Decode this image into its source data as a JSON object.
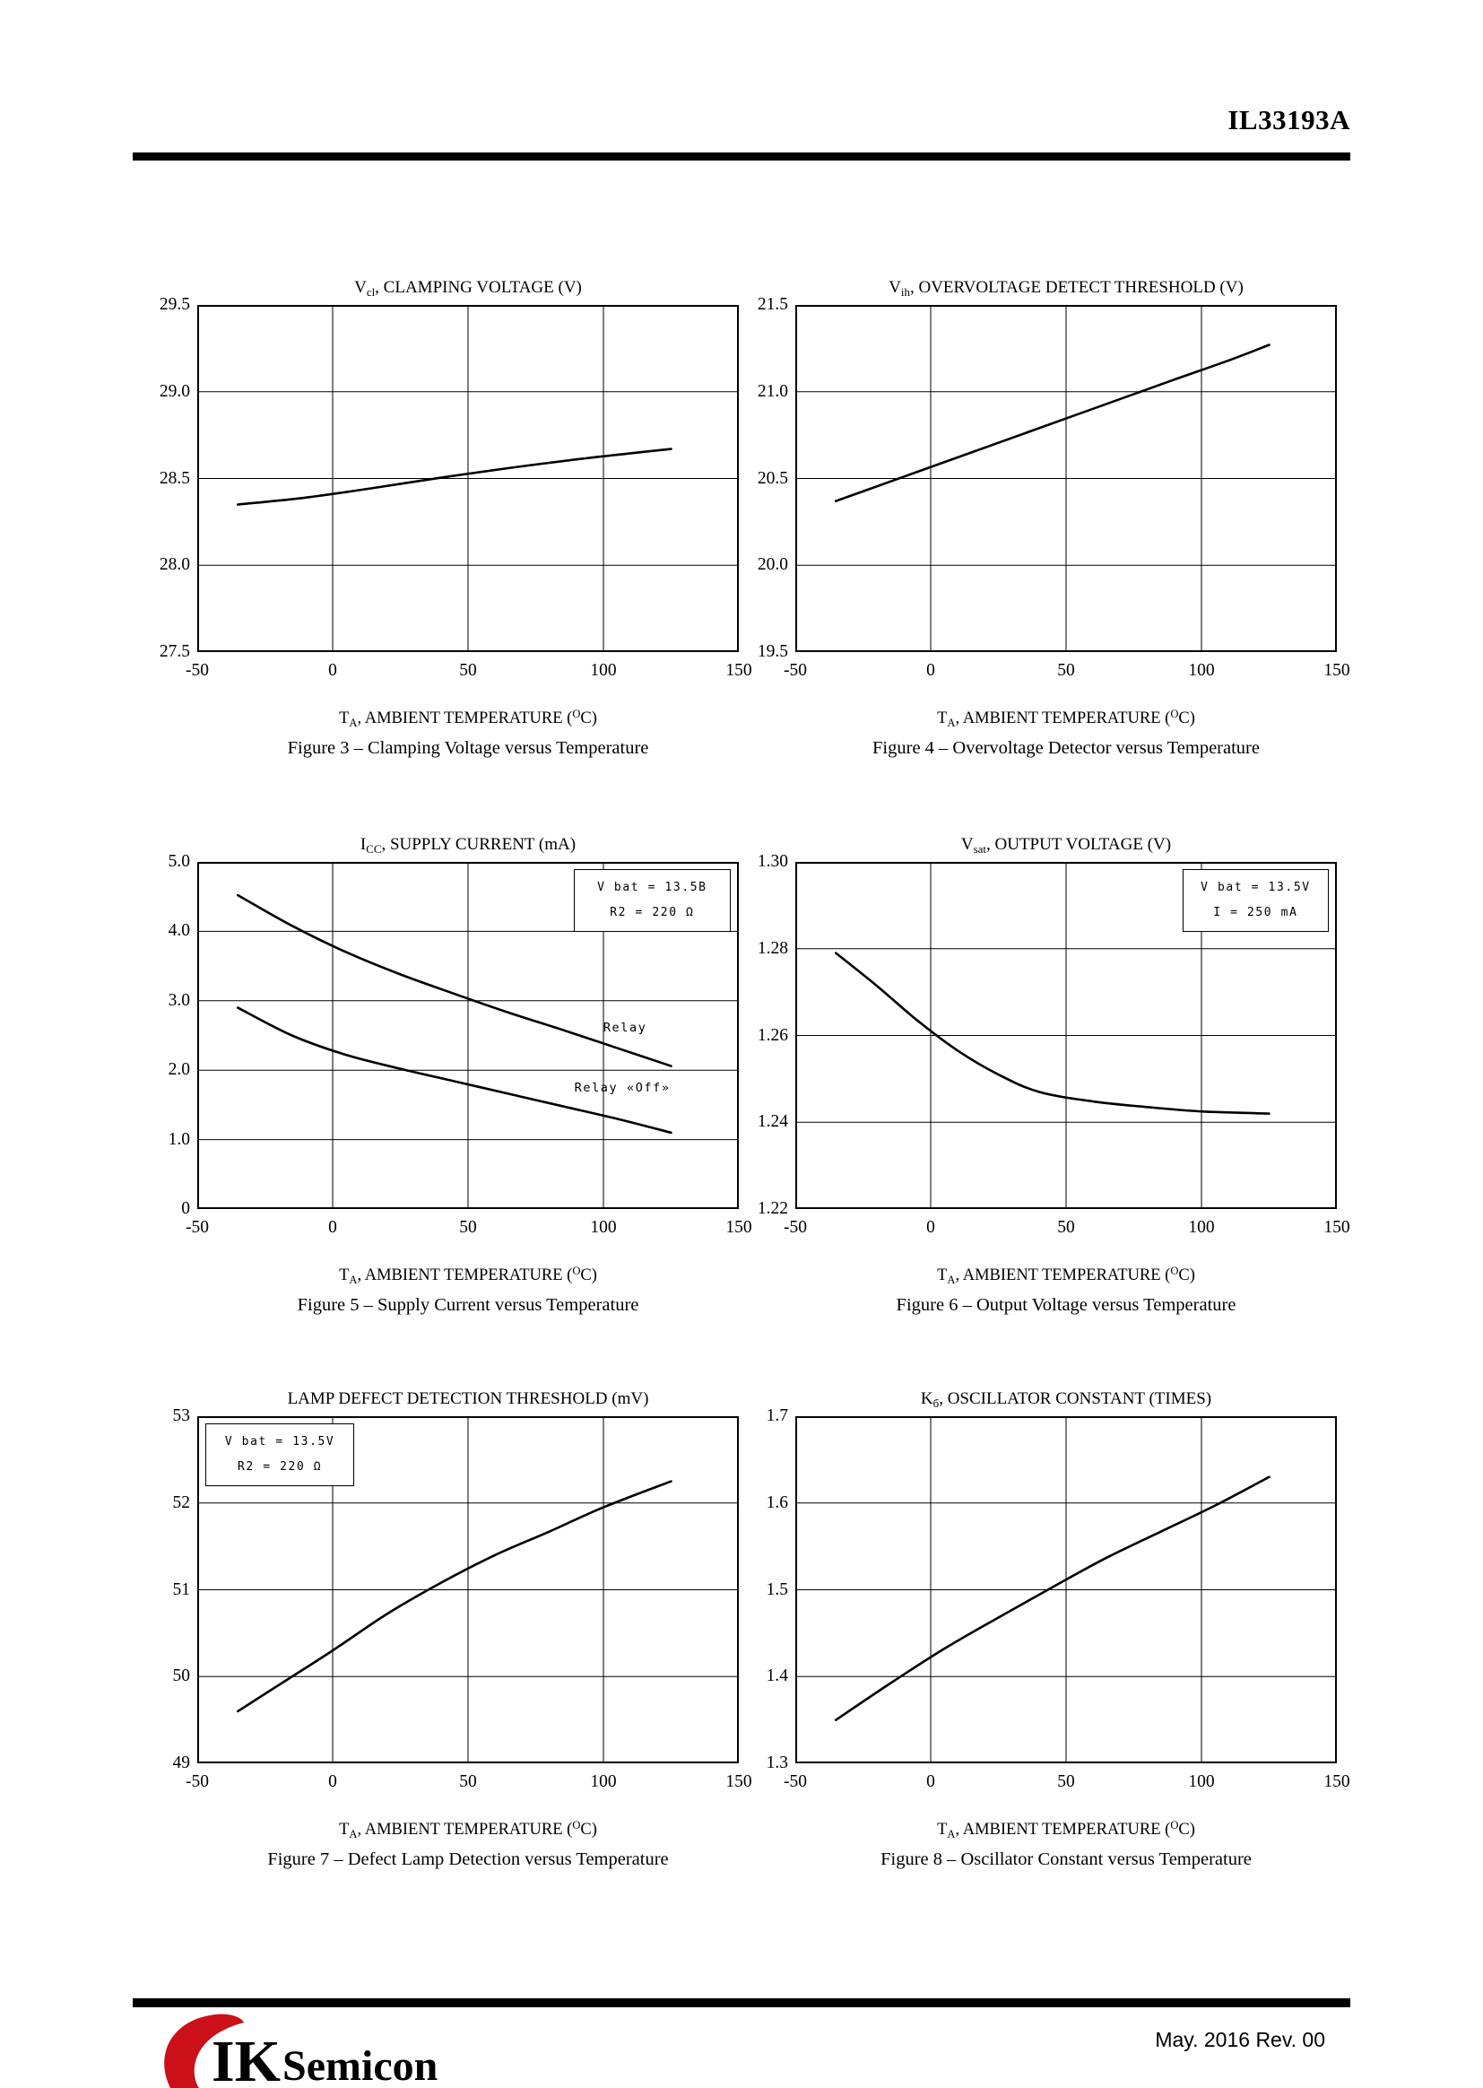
{
  "page": {
    "header": {
      "part_number": "IL33193A"
    },
    "footer": {
      "revision": "May. 2016 Rev. 00",
      "logo_text_ik": "IK",
      "logo_text_semicon": "Semicon",
      "logo_accent_color": "#cc1019"
    }
  },
  "x_axis_label_text": "TA, AMBIENT TEMPERATURE (°C)",
  "x_axis_label_parts": [
    {
      "s": "T"
    },
    {
      "t": "sub",
      "s": "A"
    },
    {
      "s": ", AMBIENT TEMPERATURE ("
    },
    {
      "t": "sup",
      "s": "O"
    },
    {
      "s": "C)"
    }
  ],
  "chart_data": [
    {
      "figure": "Figure 3",
      "type": "line",
      "title_text": "Vcl, CLAMPING VOLTAGE (V)",
      "title_parts": [
        {
          "s": "V"
        },
        {
          "t": "sub",
          "s": "cl"
        },
        {
          "s": ", CLAMPING VOLTAGE (V)"
        }
      ],
      "caption": "Figure 3 – Clamping Voltage versus Temperature",
      "xlabel": "TA, AMBIENT TEMPERATURE (°C)",
      "grid": true,
      "xlim": [
        -50,
        150
      ],
      "ylim": [
        27.5,
        29.5
      ],
      "xtick_values": [
        -50,
        0,
        50,
        100,
        150
      ],
      "xtick_labels": [
        "-50",
        "0",
        "50",
        "100",
        "150"
      ],
      "ytick_values": [
        27.5,
        28.0,
        28.5,
        29.0,
        29.5
      ],
      "ytick_labels": [
        "27.5",
        "28.0",
        "28.5",
        "29.0",
        "29.5"
      ],
      "series": [
        {
          "name": "clamping-voltage",
          "points": [
            [
              -35,
              28.35
            ],
            [
              -10,
              28.39
            ],
            [
              15,
              28.445
            ],
            [
              40,
              28.505
            ],
            [
              65,
              28.56
            ],
            [
              90,
              28.61
            ],
            [
              110,
              28.645
            ],
            [
              125,
              28.67
            ]
          ]
        }
      ]
    },
    {
      "figure": "Figure 4",
      "type": "line",
      "title_text": "Vih, OVERVOLTAGE DETECT THRESHOLD (V)",
      "title_parts": [
        {
          "s": "V"
        },
        {
          "t": "sub",
          "s": "ih"
        },
        {
          "s": ", OVERVOLTAGE DETECT THRESHOLD (V)"
        }
      ],
      "caption": "Figure 4 – Overvoltage Detector versus Temperature",
      "xlabel": "TA, AMBIENT TEMPERATURE (°C)",
      "grid": true,
      "xlim": [
        -50,
        150
      ],
      "ylim": [
        19.5,
        21.5
      ],
      "xtick_values": [
        -50,
        0,
        50,
        100,
        150
      ],
      "xtick_labels": [
        "-50",
        "0",
        "50",
        "100",
        "150"
      ],
      "ytick_values": [
        19.5,
        20.0,
        20.5,
        21.0,
        21.5
      ],
      "ytick_labels": [
        "19.5",
        "20.0",
        "20.5",
        "21.0",
        "21.5"
      ],
      "series": [
        {
          "name": "overvoltage-threshold",
          "points": [
            [
              -35,
              20.37
            ],
            [
              -10,
              20.51
            ],
            [
              15,
              20.65
            ],
            [
              40,
              20.79
            ],
            [
              65,
              20.93
            ],
            [
              90,
              21.07
            ],
            [
              110,
              21.18
            ],
            [
              125,
              21.27
            ]
          ]
        }
      ]
    },
    {
      "figure": "Figure 5",
      "type": "line",
      "title_text": "ICC, SUPPLY CURRENT (mA)",
      "title_parts": [
        {
          "s": "I"
        },
        {
          "t": "sub",
          "s": "CC"
        },
        {
          "s": ", SUPPLY CURRENT (mA)"
        }
      ],
      "caption": "Figure 5 – Supply Current versus Temperature",
      "xlabel": "TA, AMBIENT TEMPERATURE (°C)",
      "grid": true,
      "xlim": [
        -50,
        150
      ],
      "ylim": [
        0,
        5.0
      ],
      "xtick_values": [
        -50,
        0,
        50,
        100,
        150
      ],
      "xtick_labels": [
        "-50",
        "0",
        "50",
        "100",
        "150"
      ],
      "ytick_values": [
        0,
        1.0,
        2.0,
        3.0,
        4.0,
        5.0
      ],
      "ytick_labels": [
        "0",
        "1.0",
        "2.0",
        "3.0",
        "4.0",
        "5.0"
      ],
      "ann_box": {
        "x": 0.695,
        "y": 0.02,
        "w": 0.29,
        "lines": [
          "V bat = 13.5В",
          "R2 = 220 Ω"
        ]
      },
      "curve_labels": [
        {
          "text": "Relay",
          "x": 108,
          "y": 2.6
        },
        {
          "text": "Relay «Off»",
          "x": 107,
          "y": 1.73
        }
      ],
      "series": [
        {
          "name": "relay-on",
          "points": [
            [
              -35,
              4.52
            ],
            [
              -15,
              4.08
            ],
            [
              5,
              3.7
            ],
            [
              25,
              3.38
            ],
            [
              45,
              3.1
            ],
            [
              65,
              2.83
            ],
            [
              85,
              2.58
            ],
            [
              105,
              2.32
            ],
            [
              125,
              2.06
            ]
          ]
        },
        {
          "name": "relay-off",
          "points": [
            [
              -35,
              2.9
            ],
            [
              -15,
              2.5
            ],
            [
              5,
              2.22
            ],
            [
              25,
              2.02
            ],
            [
              45,
              1.84
            ],
            [
              65,
              1.66
            ],
            [
              85,
              1.48
            ],
            [
              105,
              1.3
            ],
            [
              125,
              1.1
            ]
          ]
        }
      ]
    },
    {
      "figure": "Figure 6",
      "type": "line",
      "title_text": "Vsat, OUTPUT VOLTAGE (V)",
      "title_parts": [
        {
          "s": "V"
        },
        {
          "t": "sub",
          "s": "sat"
        },
        {
          "s": ", OUTPUT VOLTAGE (V)"
        }
      ],
      "caption": "Figure 6 – Output Voltage versus Temperature",
      "xlabel": "TA, AMBIENT TEMPERATURE (°C)",
      "grid": true,
      "xlim": [
        -50,
        150
      ],
      "ylim": [
        1.22,
        1.3
      ],
      "xtick_values": [
        -50,
        0,
        50,
        100,
        150
      ],
      "xtick_labels": [
        "-50",
        "0",
        "50",
        "100",
        "150"
      ],
      "ytick_values": [
        1.22,
        1.24,
        1.26,
        1.28,
        1.3
      ],
      "ytick_labels": [
        "1.22",
        "1.24",
        "1.26",
        "1.28",
        "1.30"
      ],
      "ann_box": {
        "x": 0.715,
        "y": 0.02,
        "w": 0.27,
        "lines": [
          "V bat = 13.5V",
          "I = 250 mA"
        ]
      },
      "series": [
        {
          "name": "output-voltage",
          "points": [
            [
              -35,
              1.279
            ],
            [
              -20,
              1.2715
            ],
            [
              -5,
              1.2635
            ],
            [
              10,
              1.2565
            ],
            [
              25,
              1.251
            ],
            [
              40,
              1.247
            ],
            [
              60,
              1.2448
            ],
            [
              80,
              1.2435
            ],
            [
              100,
              1.2425
            ],
            [
              125,
              1.242
            ]
          ]
        }
      ]
    },
    {
      "figure": "Figure 7",
      "type": "line",
      "title_text": "LAMP DEFECT DETECTION THRESHOLD (mV)",
      "title_parts": [
        {
          "s": "LAMP DEFECT DETECTION THRESHOLD (mV)"
        }
      ],
      "caption": "Figure 7 – Defect Lamp Detection versus Temperature",
      "xlabel": "TA, AMBIENT TEMPERATURE (°C)",
      "grid": true,
      "xlim": [
        -50,
        150
      ],
      "ylim": [
        49,
        53
      ],
      "xtick_values": [
        -50,
        0,
        50,
        100,
        150
      ],
      "xtick_labels": [
        "-50",
        "0",
        "50",
        "100",
        "150"
      ],
      "ytick_values": [
        49,
        50,
        51,
        52,
        53
      ],
      "ytick_labels": [
        "49",
        "50",
        "51",
        "52",
        "53"
      ],
      "ann_box": {
        "x": 0.015,
        "y": 0.02,
        "w": 0.275,
        "lines": [
          "V bat = 13.5V",
          "R2 = 220 Ω"
        ]
      },
      "series": [
        {
          "name": "lamp-defect-threshold",
          "points": [
            [
              -35,
              49.6
            ],
            [
              -20,
              49.9
            ],
            [
              0,
              50.3
            ],
            [
              20,
              50.72
            ],
            [
              40,
              51.08
            ],
            [
              60,
              51.4
            ],
            [
              80,
              51.67
            ],
            [
              100,
              51.95
            ],
            [
              125,
              52.25
            ]
          ]
        }
      ]
    },
    {
      "figure": "Figure 8",
      "type": "line",
      "title_text": "Kб, OSCILLATOR CONSTANT (TIMES)",
      "title_parts": [
        {
          "s": "K"
        },
        {
          "t": "sub",
          "s": "б"
        },
        {
          "s": ", OSCILLATOR CONSTANT (TIMES)"
        }
      ],
      "caption": "Figure 8 – Oscillator Constant versus Temperature",
      "xlabel": "TA, AMBIENT TEMPERATURE (°C)",
      "grid": true,
      "xlim": [
        -50,
        150
      ],
      "ylim": [
        1.3,
        1.7
      ],
      "xtick_values": [
        -50,
        0,
        50,
        100,
        150
      ],
      "xtick_labels": [
        "-50",
        "0",
        "50",
        "100",
        "150"
      ],
      "ytick_values": [
        1.3,
        1.4,
        1.5,
        1.6,
        1.7
      ],
      "ytick_labels": [
        "1.3",
        "1.4",
        "1.5",
        "1.6",
        "1.7"
      ],
      "series": [
        {
          "name": "oscillator-constant",
          "points": [
            [
              -35,
              1.35
            ],
            [
              -15,
              1.392
            ],
            [
              5,
              1.432
            ],
            [
              25,
              1.468
            ],
            [
              45,
              1.503
            ],
            [
              65,
              1.537
            ],
            [
              85,
              1.567
            ],
            [
              105,
              1.597
            ],
            [
              125,
              1.63
            ]
          ]
        }
      ]
    }
  ]
}
